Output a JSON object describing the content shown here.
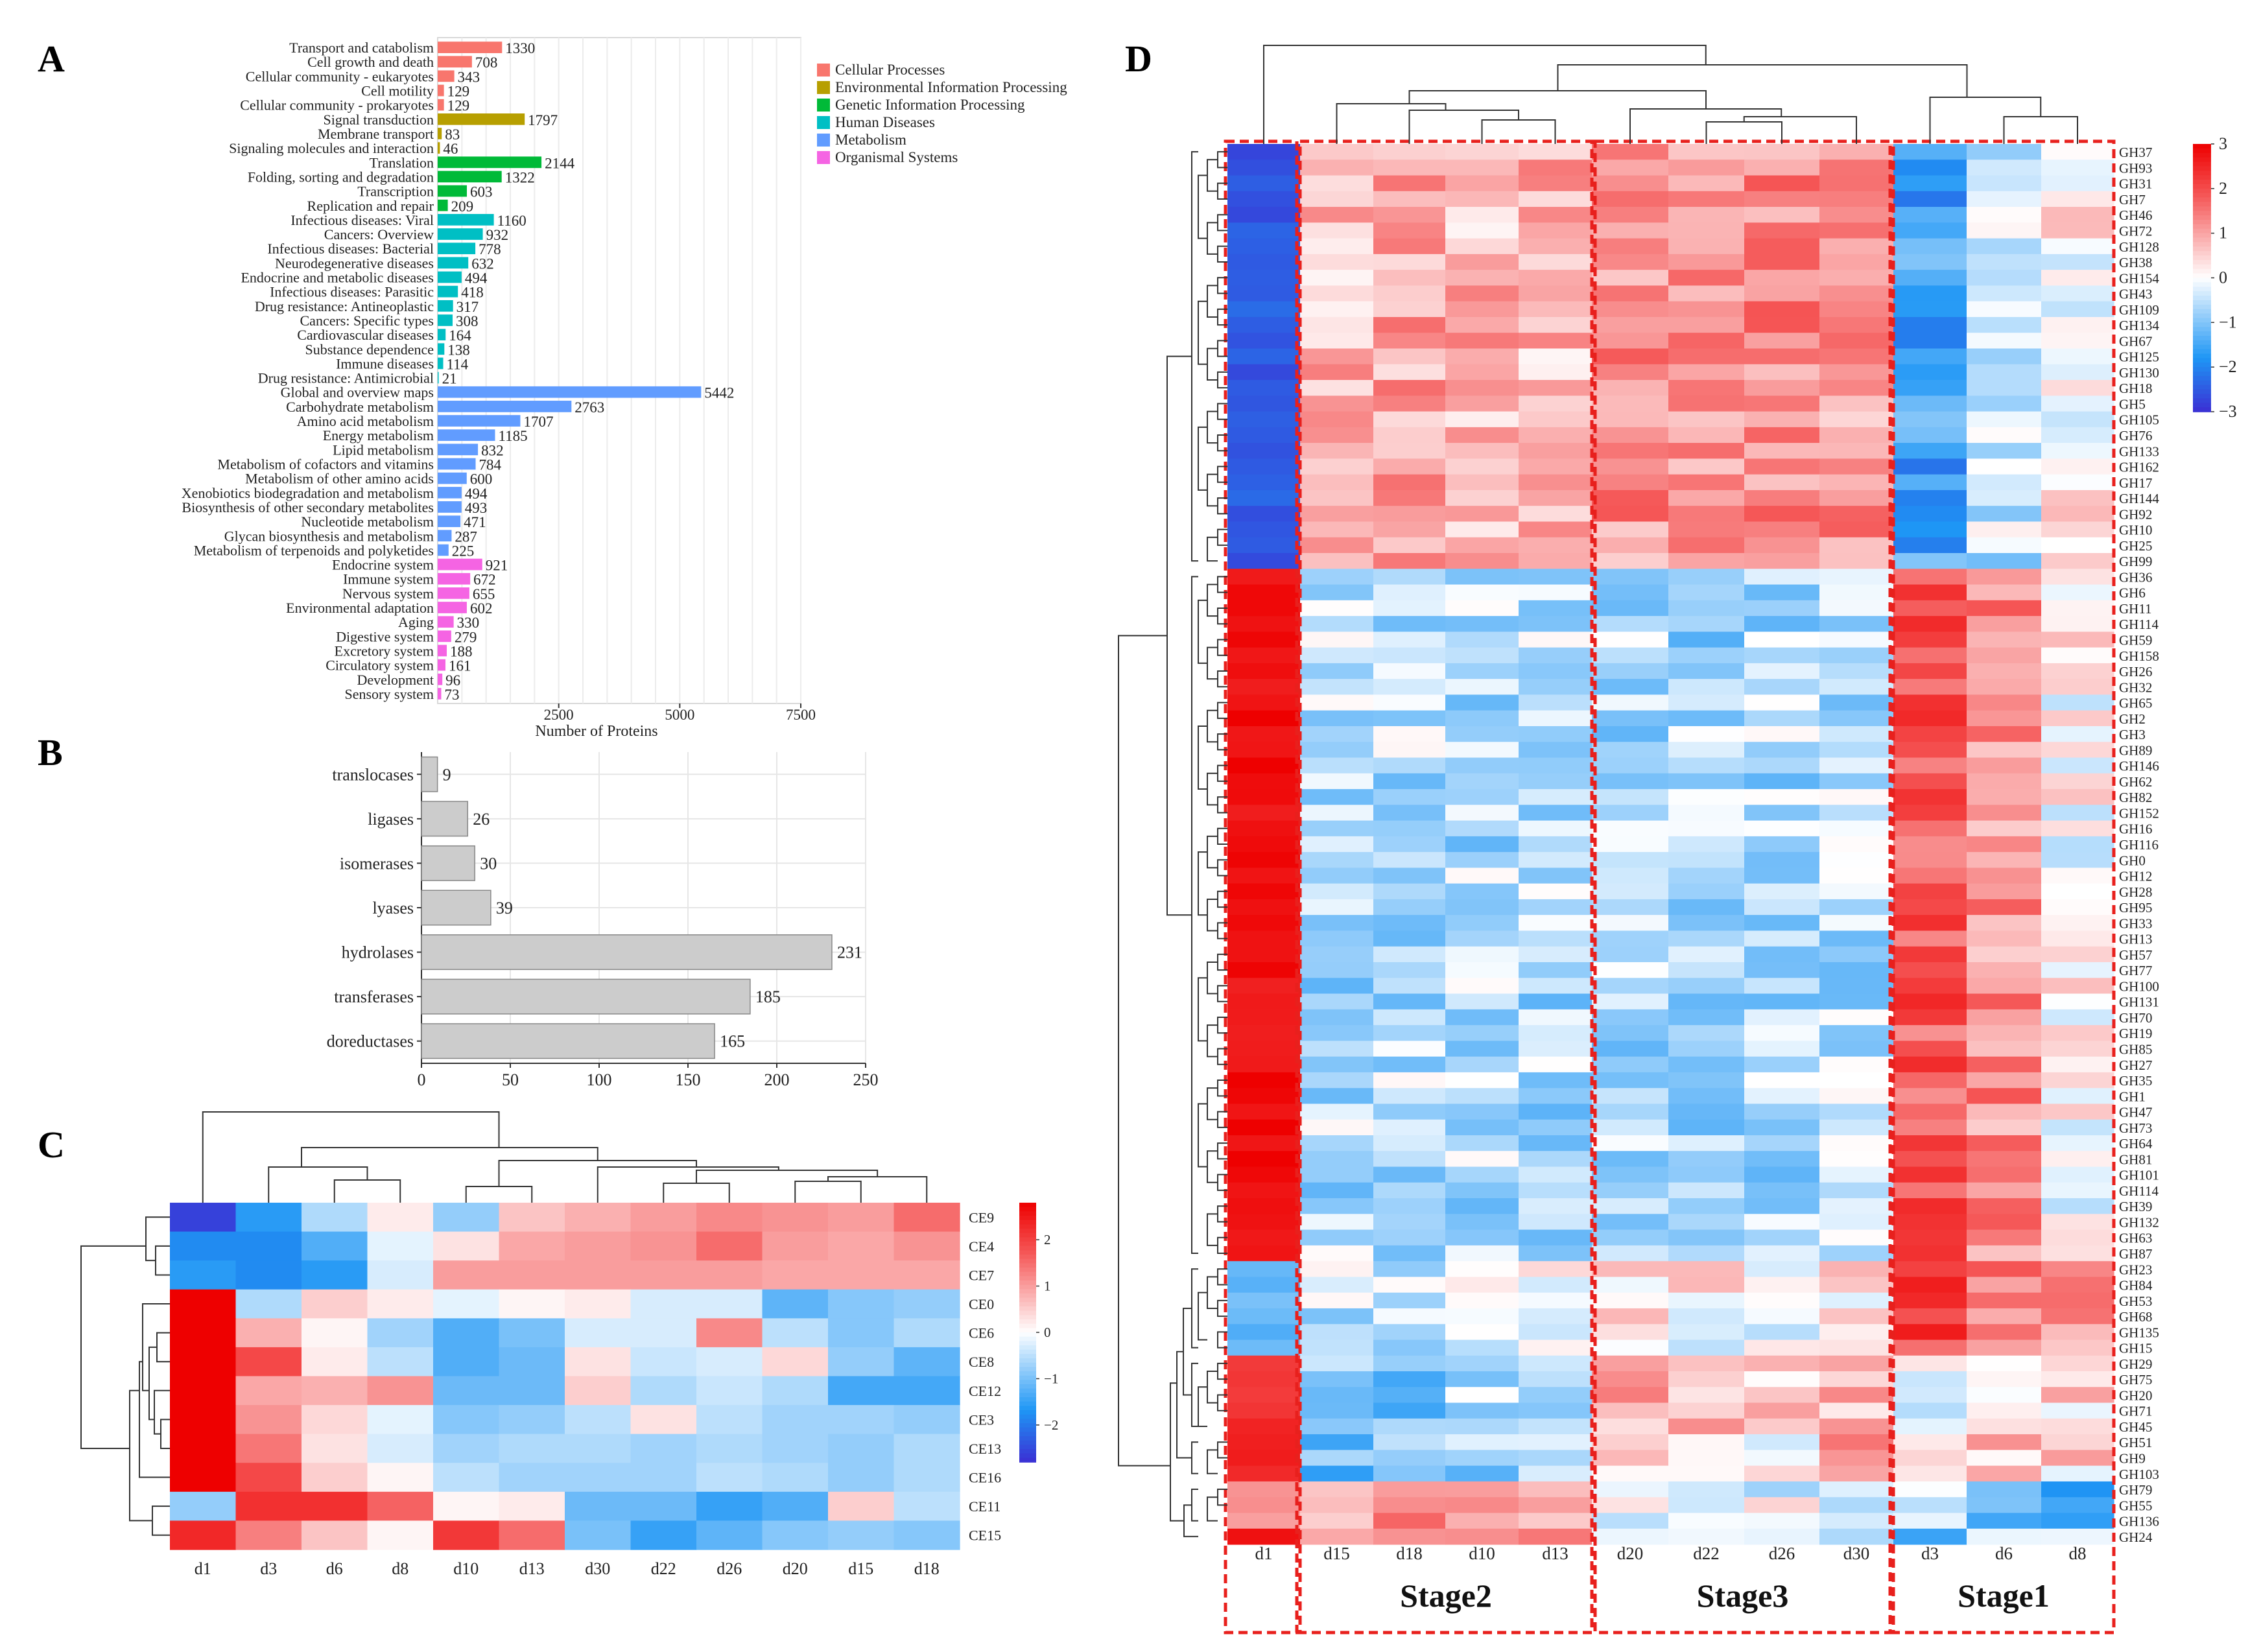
{
  "chart_data": [
    {
      "panel": "A",
      "type": "bar",
      "orientation": "horizontal",
      "xlabel": "Number of Proteins",
      "ylabel": "",
      "xlim": [
        0,
        7500
      ],
      "xticks": [
        2500,
        5000,
        7500
      ],
      "legend_position": "right",
      "categories_legend": [
        {
          "name": "Cellular Processes",
          "color": "#f8766d"
        },
        {
          "name": "Environmental Information Processing",
          "color": "#b79f00"
        },
        {
          "name": "Genetic Information Processing",
          "color": "#00ba38"
        },
        {
          "name": "Human Diseases",
          "color": "#00bfc4"
        },
        {
          "name": "Metabolism",
          "color": "#619cff"
        },
        {
          "name": "Organismal Systems",
          "color": "#f564e3"
        }
      ],
      "bars": [
        {
          "label": "Transport and catabolism",
          "value": 1330,
          "group": 0
        },
        {
          "label": "Cell growth and death",
          "value": 708,
          "group": 0
        },
        {
          "label": "Cellular community - eukaryotes",
          "value": 343,
          "group": 0
        },
        {
          "label": "Cell motility",
          "value": 129,
          "group": 0
        },
        {
          "label": "Cellular community - prokaryotes",
          "value": 129,
          "group": 0
        },
        {
          "label": "Signal transduction",
          "value": 1797,
          "group": 1
        },
        {
          "label": "Membrane transport",
          "value": 83,
          "group": 1
        },
        {
          "label": "Signaling molecules and interaction",
          "value": 46,
          "group": 1
        },
        {
          "label": "Translation",
          "value": 2144,
          "group": 2
        },
        {
          "label": "Folding, sorting and degradation",
          "value": 1322,
          "group": 2
        },
        {
          "label": "Transcription",
          "value": 603,
          "group": 2
        },
        {
          "label": "Replication and repair",
          "value": 209,
          "group": 2
        },
        {
          "label": "Infectious diseases: Viral",
          "value": 1160,
          "group": 3
        },
        {
          "label": "Cancers: Overview",
          "value": 932,
          "group": 3
        },
        {
          "label": "Infectious diseases: Bacterial",
          "value": 778,
          "group": 3
        },
        {
          "label": "Neurodegenerative diseases",
          "value": 632,
          "group": 3
        },
        {
          "label": "Endocrine and metabolic diseases",
          "value": 494,
          "group": 3
        },
        {
          "label": "Infectious diseases: Parasitic",
          "value": 418,
          "group": 3
        },
        {
          "label": "Drug resistance: Antineoplastic",
          "value": 317,
          "group": 3
        },
        {
          "label": "Cancers: Specific types",
          "value": 308,
          "group": 3
        },
        {
          "label": "Cardiovascular diseases",
          "value": 164,
          "group": 3
        },
        {
          "label": "Substance dependence",
          "value": 138,
          "group": 3
        },
        {
          "label": "Immune diseases",
          "value": 114,
          "group": 3
        },
        {
          "label": "Drug resistance: Antimicrobial",
          "value": 21,
          "group": 3
        },
        {
          "label": "Global and overview maps",
          "value": 5442,
          "group": 4
        },
        {
          "label": "Carbohydrate metabolism",
          "value": 2763,
          "group": 4
        },
        {
          "label": "Amino acid metabolism",
          "value": 1707,
          "group": 4
        },
        {
          "label": "Energy metabolism",
          "value": 1185,
          "group": 4
        },
        {
          "label": "Lipid metabolism",
          "value": 832,
          "group": 4
        },
        {
          "label": "Metabolism of cofactors and vitamins",
          "value": 784,
          "group": 4
        },
        {
          "label": "Metabolism of other amino acids",
          "value": 600,
          "group": 4
        },
        {
          "label": "Xenobiotics biodegradation and metabolism",
          "value": 494,
          "group": 4
        },
        {
          "label": "Biosynthesis of other secondary metabolites",
          "value": 493,
          "group": 4
        },
        {
          "label": "Nucleotide metabolism",
          "value": 471,
          "group": 4
        },
        {
          "label": "Glycan biosynthesis and metabolism",
          "value": 287,
          "group": 4
        },
        {
          "label": "Metabolism of terpenoids and polyketides",
          "value": 225,
          "group": 4
        },
        {
          "label": "Endocrine system",
          "value": 921,
          "group": 5
        },
        {
          "label": "Immune system",
          "value": 672,
          "group": 5
        },
        {
          "label": "Nervous system",
          "value": 655,
          "group": 5
        },
        {
          "label": "Environmental adaptation",
          "value": 602,
          "group": 5
        },
        {
          "label": "Aging",
          "value": 330,
          "group": 5
        },
        {
          "label": "Digestive system",
          "value": 279,
          "group": 5
        },
        {
          "label": "Excretory system",
          "value": 188,
          "group": 5
        },
        {
          "label": "Circulatory system",
          "value": 161,
          "group": 5
        },
        {
          "label": "Development",
          "value": 96,
          "group": 5
        },
        {
          "label": "Sensory system",
          "value": 73,
          "group": 5
        }
      ]
    },
    {
      "panel": "B",
      "type": "bar",
      "orientation": "horizontal",
      "xlim": [
        0,
        250
      ],
      "xticks": [
        0,
        50,
        100,
        150,
        200,
        250
      ],
      "grid": true,
      "color": "#cccccc",
      "categories": [
        "translocases",
        "ligases",
        "isomerases",
        "lyases",
        "hydrolases",
        "transferases",
        "doreductases"
      ],
      "values": [
        9,
        26,
        30,
        39,
        231,
        185,
        165
      ]
    },
    {
      "panel": "C",
      "type": "heatmap",
      "columns": [
        "d1",
        "d3",
        "d6",
        "d8",
        "d10",
        "d13",
        "d30",
        "d22",
        "d26",
        "d20",
        "d15",
        "d18"
      ],
      "rows": [
        "CE9",
        "CE4",
        "CE7",
        "CE0",
        "CE6",
        "CE8",
        "CE12",
        "CE3",
        "CE13",
        "CE16",
        "CE11",
        "CE15"
      ],
      "colorbar": {
        "min": -2.8,
        "max": 2.8,
        "ticks": [
          2,
          1,
          0,
          -1,
          -2
        ],
        "tick_labels": [
          "2",
          "1",
          "0",
          "−1",
          "−2"
        ]
      },
      "values": [
        [
          -2.6,
          -1.6,
          -0.6,
          0.2,
          -0.8,
          0.6,
          0.8,
          1.0,
          1.2,
          1.1,
          1.0,
          1.5
        ],
        [
          -1.8,
          -1.8,
          -1.3,
          -0.2,
          0.3,
          0.9,
          1.0,
          1.1,
          1.5,
          1.0,
          0.9,
          1.1
        ],
        [
          -1.6,
          -1.8,
          -1.6,
          -0.3,
          1.0,
          1.0,
          1.0,
          1.0,
          1.0,
          0.9,
          0.9,
          0.9
        ],
        [
          2.8,
          -0.6,
          0.5,
          0.2,
          -0.2,
          0.1,
          0.2,
          -0.3,
          -0.3,
          -1.2,
          -0.9,
          -0.8
        ],
        [
          2.8,
          0.8,
          0.1,
          -0.7,
          -1.3,
          -1.0,
          -0.3,
          -0.3,
          1.2,
          -0.5,
          -0.9,
          -0.6
        ],
        [
          2.8,
          1.9,
          0.2,
          -0.5,
          -1.3,
          -1.1,
          0.3,
          -0.4,
          -0.3,
          0.4,
          -0.8,
          -1.2
        ],
        [
          2.8,
          0.9,
          0.8,
          1.1,
          -1.1,
          -1.1,
          0.5,
          -0.6,
          -0.4,
          -0.6,
          -1.4,
          -1.4
        ],
        [
          2.8,
          1.1,
          0.4,
          -0.2,
          -0.9,
          -0.8,
          -0.5,
          0.3,
          -0.5,
          -0.7,
          -0.7,
          -0.8
        ],
        [
          2.8,
          1.4,
          0.3,
          -0.3,
          -0.7,
          -0.6,
          -0.6,
          -0.7,
          -0.6,
          -0.7,
          -0.8,
          -0.6
        ],
        [
          2.8,
          1.9,
          0.5,
          0.1,
          -0.5,
          -0.7,
          -0.7,
          -0.7,
          -0.5,
          -0.6,
          -0.8,
          -0.6
        ],
        [
          -0.8,
          2.2,
          2.2,
          1.6,
          0.1,
          0.2,
          -1.1,
          -1.1,
          -1.5,
          -1.3,
          0.5,
          -0.5
        ],
        [
          2.3,
          1.3,
          0.6,
          0.1,
          2.1,
          1.5,
          -1.0,
          -1.5,
          -1.2,
          -0.9,
          -0.8,
          -0.9
        ]
      ]
    },
    {
      "panel": "D",
      "type": "heatmap",
      "columns": [
        "d1",
        "d15",
        "d18",
        "d10",
        "d13",
        "d20",
        "d22",
        "d26",
        "d30",
        "d3",
        "d6",
        "d8"
      ],
      "column_groups": [
        {
          "name": "",
          "start": 0,
          "end": 0
        },
        {
          "name": "Stage2",
          "start": 1,
          "end": 4
        },
        {
          "name": "Stage3",
          "start": 5,
          "end": 8
        },
        {
          "name": "Stage1",
          "start": 9,
          "end": 11
        }
      ],
      "rows": [
        "GH37",
        "GH93",
        "GH31",
        "GH7",
        "GH46",
        "GH72",
        "GH128",
        "GH38",
        "GH154",
        "GH43",
        "GH109",
        "GH134",
        "GH67",
        "GH125",
        "GH130",
        "GH18",
        "GH5",
        "GH105",
        "GH76",
        "GH133",
        "GH162",
        "GH17",
        "GH144",
        "GH92",
        "GH10",
        "GH25",
        "GH99",
        "GH36",
        "GH6",
        "GH11",
        "GH114",
        "GH59",
        "GH158",
        "GH26",
        "GH32",
        "GH65",
        "GH2",
        "GH3",
        "GH89",
        "GH146",
        "GH62",
        "GH82",
        "GH152",
        "GH16",
        "GH116",
        "GH0",
        "GH12",
        "GH28",
        "GH95",
        "GH33",
        "GH13",
        "GH57",
        "GH77",
        "GH100",
        "GH131",
        "GH70",
        "GH19",
        "GH85",
        "GH27",
        "GH35",
        "GH1",
        "GH47",
        "GH73",
        "GH64",
        "GH81",
        "GH101",
        "GH114",
        "GH39",
        "GH132",
        "GH63",
        "GH87",
        "GH23",
        "GH84",
        "GH53",
        "GH68",
        "GH135",
        "GH15",
        "GH29",
        "GH75",
        "GH20",
        "GH71",
        "GH45",
        "GH51",
        "GH9",
        "GH103",
        "GH79",
        "GH55",
        "GH136",
        "GH24"
      ],
      "cluster_sizes": [
        27,
        44,
        6,
        5,
        3,
        3,
        1
      ],
      "cluster_means": [
        [
          -2.5,
          0.8,
          0.9,
          0.8,
          0.8,
          1.2,
          1.3,
          1.3,
          1.1,
          -1.6,
          -0.5,
          0.1
        ],
        [
          2.8,
          -0.6,
          -0.6,
          -0.6,
          -0.6,
          -0.6,
          -0.7,
          -0.6,
          -0.6,
          1.8,
          1.2,
          0.1
        ],
        [
          -1.3,
          -0.5,
          -0.4,
          -0.4,
          0.2,
          0.2,
          0.1,
          0.1,
          0.2,
          2.0,
          1.2,
          1.0
        ],
        [
          2.4,
          -0.7,
          -0.9,
          -0.6,
          -0.3,
          0.9,
          0.7,
          0.4,
          0.6,
          -0.2,
          0.3,
          0.4
        ],
        [
          2.6,
          -1.2,
          -1.0,
          -0.8,
          -0.4,
          0.6,
          0.5,
          0.3,
          1.0,
          -0.2,
          0.7,
          0.4
        ],
        [
          1.3,
          1.0,
          1.0,
          0.8,
          0.8,
          -0.1,
          -0.3,
          -0.2,
          -0.4,
          -0.6,
          -1.2,
          -1.7
        ],
        [
          2.6,
          0.9,
          0.9,
          0.9,
          0.8,
          0.1,
          0.1,
          0.1,
          -0.8,
          -1.0,
          -0.7,
          -0.8
        ]
      ],
      "colorbar": {
        "min": -3,
        "max": 3,
        "ticks": [
          3,
          2,
          1,
          0,
          -1,
          -2,
          -3
        ],
        "tick_labels": [
          "3",
          "2",
          "1",
          "0",
          "−1",
          "−2",
          "−3"
        ]
      }
    }
  ],
  "panel_labels": [
    "A",
    "B",
    "C",
    "D"
  ],
  "colors": {
    "heat_low": "#3b2fd4",
    "heat_mid": "#ffffff",
    "heat_high": "#ee0000",
    "box_dash": "#e8201d"
  }
}
